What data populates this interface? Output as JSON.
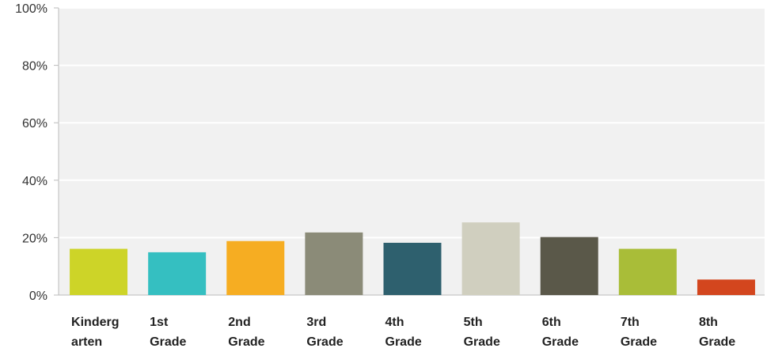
{
  "chart_data": {
    "type": "bar",
    "categories": [
      [
        "Kinderg",
        "arten"
      ],
      [
        "1st",
        "Grade"
      ],
      [
        "2nd",
        "Grade"
      ],
      [
        "3rd",
        "Grade"
      ],
      [
        "4th",
        "Grade"
      ],
      [
        "5th",
        "Grade"
      ],
      [
        "6th",
        "Grade"
      ],
      [
        "7th",
        "Grade"
      ],
      [
        "8th",
        "Grade"
      ]
    ],
    "values": [
      16.1,
      14.9,
      18.8,
      21.8,
      18.2,
      25.3,
      20.2,
      16.1,
      5.4
    ],
    "colors": [
      "#cdd428",
      "#35bfc1",
      "#f6ad22",
      "#8b8b78",
      "#2e606e",
      "#d0cfbf",
      "#5a5849",
      "#a9bd38",
      "#d3461e"
    ],
    "ylim": [
      0,
      100
    ],
    "yticks": [
      0,
      20,
      40,
      60,
      80,
      100
    ],
    "ytick_labels": [
      "0%",
      "20%",
      "40%",
      "60%",
      "80%",
      "100%"
    ],
    "grid": true,
    "plot_background": "#f1f1f1",
    "grid_color": "#ffffff",
    "title": "",
    "xlabel": "",
    "ylabel": ""
  }
}
